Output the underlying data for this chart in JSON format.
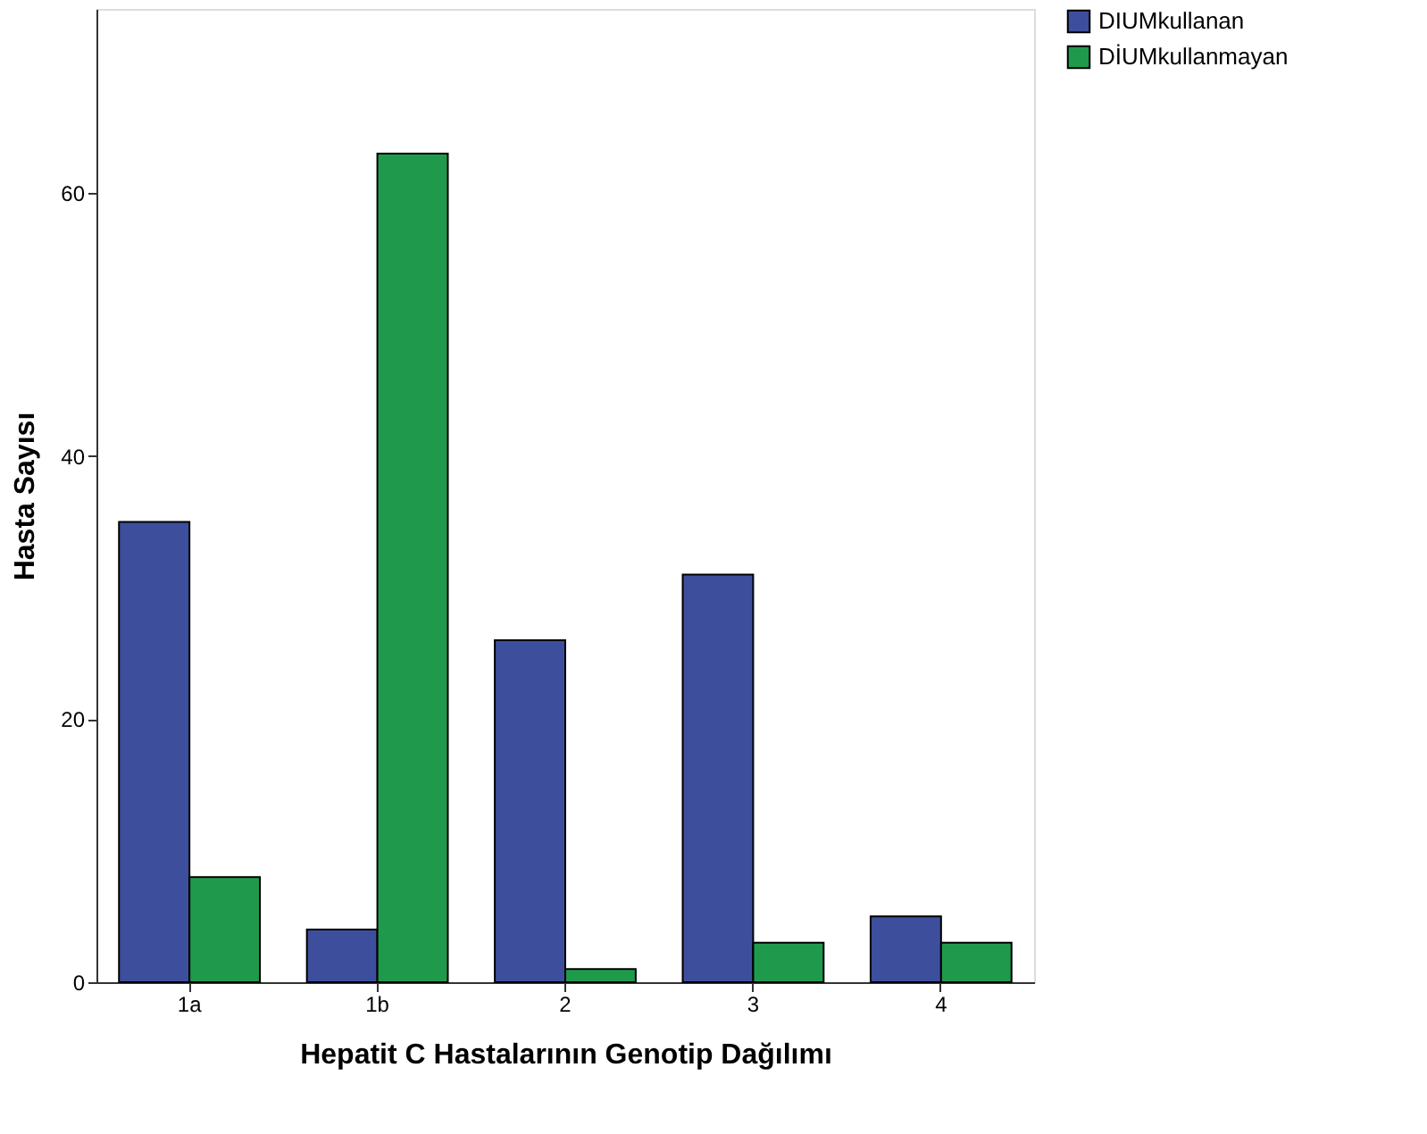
{
  "chart_data": {
    "type": "bar",
    "xlabel": "Hepatit C Hastalarının Genotip Dağılımı",
    "ylabel": "Hasta Sayısı",
    "categories": [
      "1a",
      "1b",
      "2",
      "3",
      "4"
    ],
    "series": [
      {
        "name": "DIUMkullanan",
        "color": "#3d4e9c",
        "values": [
          35,
          4,
          26,
          31,
          5
        ]
      },
      {
        "name": "DİUMkullanmayan",
        "color": "#1f9a4c",
        "values": [
          8,
          63,
          1,
          3,
          3
        ]
      }
    ],
    "ylim": [
      0,
      74
    ],
    "yticks": [
      0,
      20,
      40,
      60
    ],
    "grid": false,
    "legend": "top right"
  }
}
